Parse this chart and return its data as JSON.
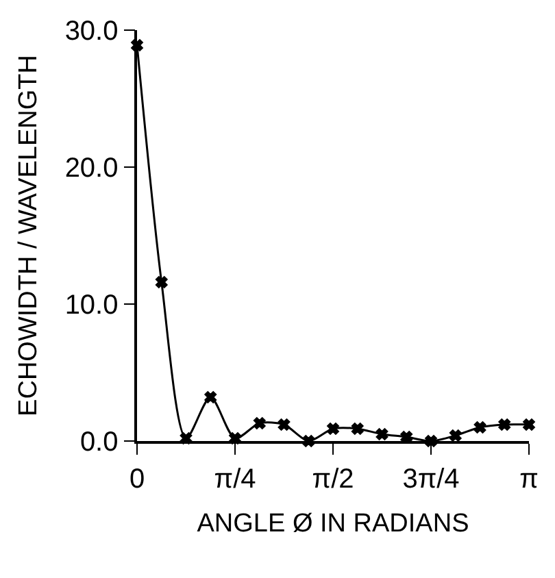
{
  "chart_data": {
    "type": "line",
    "xlabel": "ANGLE Ø IN RADIANS",
    "ylabel": "ECHOWIDTH / WAVELENGTH",
    "x": [
      0,
      0.19635,
      0.392699,
      0.589049,
      0.785398,
      0.981748,
      1.178097,
      1.374447,
      1.570796,
      1.767146,
      1.963495,
      2.159845,
      2.356194,
      2.552544,
      2.748894,
      2.945243,
      3.141593
    ],
    "series": [
      {
        "color": "#000000",
        "values": [
          28.9,
          11.6,
          0.2,
          3.2,
          0.2,
          1.3,
          1.2,
          0.0,
          0.9,
          0.9,
          0.5,
          0.3,
          0.0,
          0.4,
          1.0,
          1.2,
          1.2
        ]
      }
    ],
    "xlim": [
      0,
      3.141593
    ],
    "xticks": [
      {
        "value": 0,
        "label": "0"
      },
      {
        "value": 0.785398,
        "label": "π/4"
      },
      {
        "value": 1.570796,
        "label": "π/2"
      },
      {
        "value": 2.356194,
        "label": "3π/4"
      },
      {
        "value": 3.141593,
        "label": "π"
      }
    ],
    "ylim": [
      0,
      30
    ],
    "yticks": [
      {
        "value": 0,
        "label": "0.0"
      },
      {
        "value": 10,
        "label": "10.0"
      },
      {
        "value": 20,
        "label": "20.0"
      },
      {
        "value": 30,
        "label": "30.0"
      }
    ],
    "marker": "cross",
    "line_style": "solid"
  }
}
